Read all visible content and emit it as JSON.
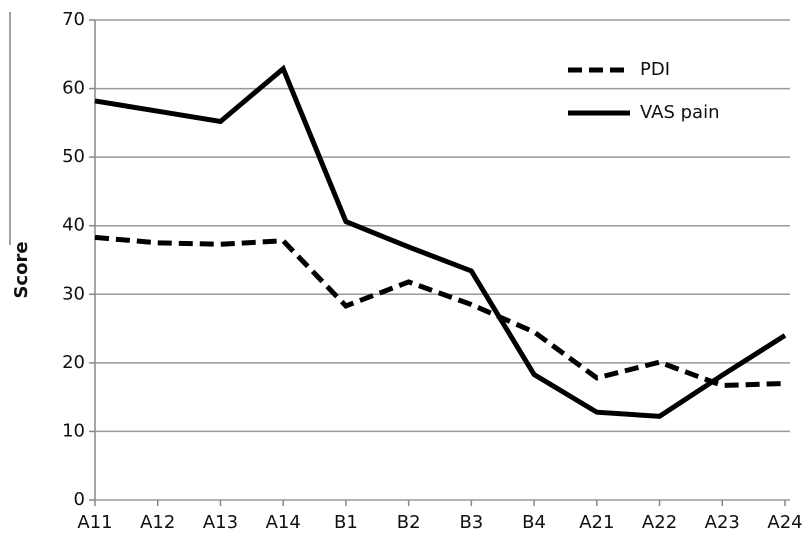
{
  "chart_data": {
    "type": "line",
    "y_label": "Score",
    "categories": [
      "A11",
      "A12",
      "A13",
      "A14",
      "B1",
      "B2",
      "B3",
      "B4",
      "A21",
      "A22",
      "A23",
      "A24"
    ],
    "series": [
      {
        "name": "PDI",
        "color": "#000000",
        "style": "dashed",
        "values": [
          38.3,
          37.5,
          37.3,
          37.8,
          28.3,
          31.8,
          28.5,
          24.5,
          17.8,
          20.1,
          16.7,
          17.0
        ]
      },
      {
        "name": "VAS pain",
        "color": "#000000",
        "style": "solid",
        "values": [
          58.2,
          56.7,
          55.2,
          62.9,
          40.6,
          36.9,
          33.4,
          18.3,
          12.8,
          12.2,
          18.2,
          24.0
        ]
      }
    ],
    "ylim": [
      0,
      70
    ],
    "yticks": [
      0,
      10,
      20,
      30,
      40,
      50,
      60,
      70
    ],
    "grid": true,
    "legend": "top-right"
  }
}
